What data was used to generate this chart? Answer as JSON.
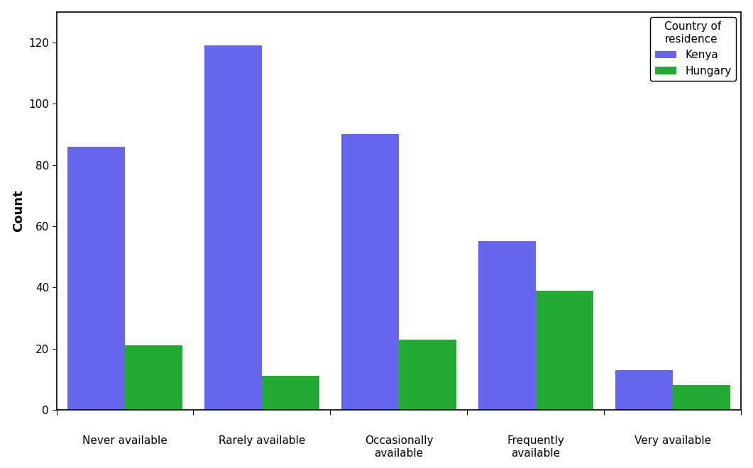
{
  "categories": [
    "Never available",
    "Rarely available",
    "Occasionally\navailable",
    "Frequently\navailable",
    "Very available"
  ],
  "kenya_values": [
    86,
    119,
    90,
    55,
    13
  ],
  "hungary_values": [
    21,
    11,
    23,
    39,
    8
  ],
  "kenya_color": "#6666EE",
  "hungary_color": "#22AA33",
  "ylabel": "Count",
  "ylim": [
    0,
    130
  ],
  "yticks": [
    0,
    20,
    40,
    60,
    80,
    100,
    120
  ],
  "legend_title": "Country of\nresidence",
  "legend_labels": [
    "Kenya",
    "Hungary"
  ],
  "bar_width": 0.42,
  "background_color": "#ffffff",
  "spine_color": "#000000",
  "tick_label_fontsize": 11,
  "axis_label_fontsize": 13,
  "legend_fontsize": 11,
  "legend_title_fontsize": 11
}
